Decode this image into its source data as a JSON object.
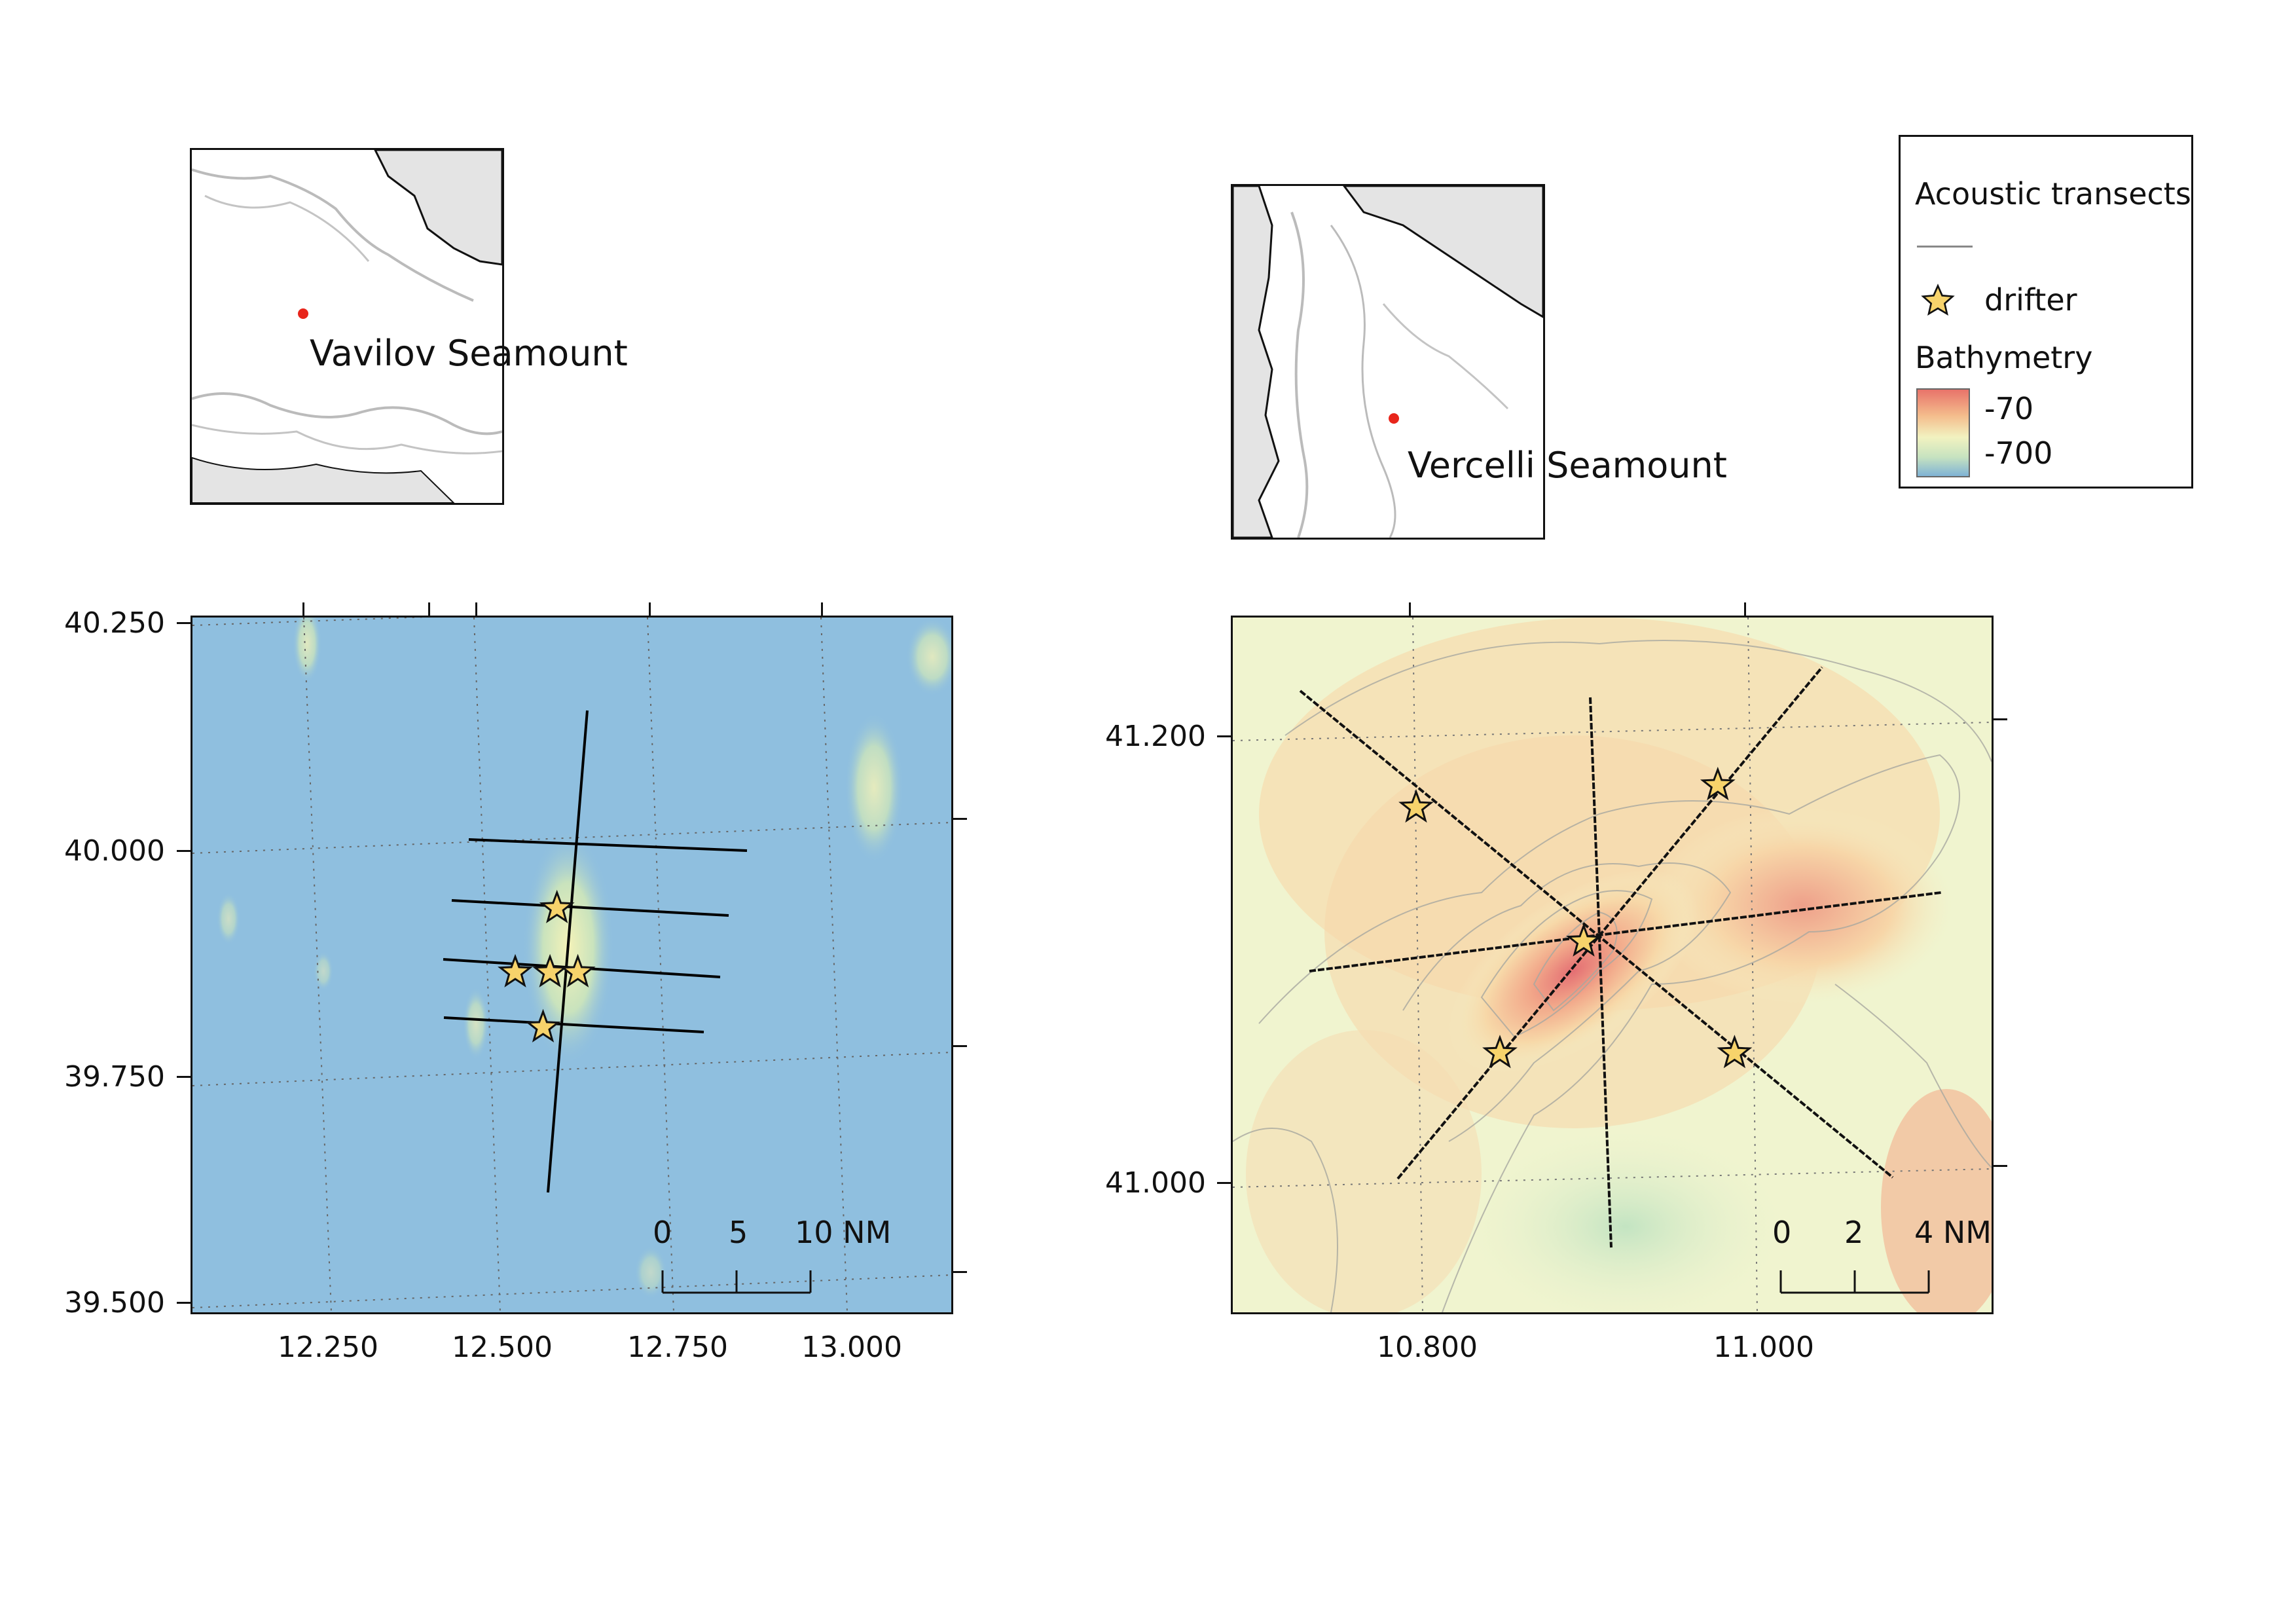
{
  "inset_left": {
    "label": "Vavilov Seamount"
  },
  "inset_right": {
    "label": "Vercelli Seamount"
  },
  "legend": {
    "transects_title": "Acoustic transects",
    "drifter_label": "drifter",
    "bathymetry_title": "Bathymetry",
    "bathy_max": "-70",
    "bathy_min": "-700",
    "colors": {
      "shallow": "#e8736a",
      "mid": "#f2f2c0",
      "deep": "#7fb3d5"
    }
  },
  "map_left": {
    "y_ticks": [
      "40.250",
      "40.000",
      "39.750",
      "39.500"
    ],
    "x_ticks": [
      "12.250",
      "12.500",
      "12.750",
      "13.000"
    ],
    "scale_bar": {
      "labels": [
        "0",
        "5",
        "10 NM"
      ]
    },
    "background_color": "#8fbfdf",
    "drifters": [
      {
        "lon": 12.6,
        "lat": 39.94
      },
      {
        "lon": 12.54,
        "lat": 39.87
      },
      {
        "lon": 12.59,
        "lat": 39.87
      },
      {
        "lon": 12.63,
        "lat": 39.87
      },
      {
        "lon": 12.58,
        "lat": 39.81
      }
    ]
  },
  "map_right": {
    "y_ticks": [
      "41.200",
      "41.000"
    ],
    "x_ticks": [
      "10.800",
      "11.000"
    ],
    "scale_bar": {
      "labels": [
        "0",
        "2",
        "4 NM"
      ]
    },
    "drifters": [
      {
        "lon": 10.8,
        "lat": 41.17
      },
      {
        "lon": 10.98,
        "lat": 41.18
      },
      {
        "lon": 10.9,
        "lat": 41.11
      },
      {
        "lon": 10.85,
        "lat": 41.06
      },
      {
        "lon": 10.99,
        "lat": 41.06
      }
    ]
  }
}
